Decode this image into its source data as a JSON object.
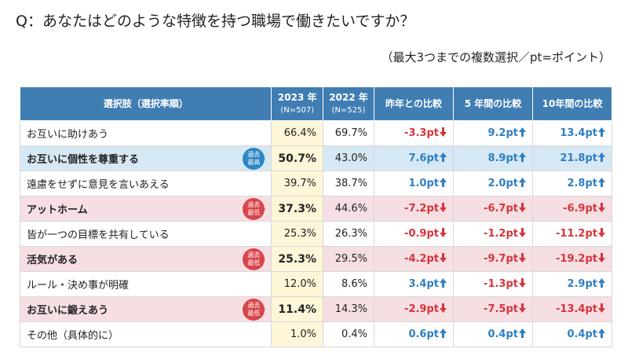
{
  "title": "Q：あなたはどのような特徴を持つ職場で働きたいですか？",
  "note": "（最大3つまでの複数選択／pt=ポイント）",
  "table": {
    "header": [
      [
        "選択肢（選択率順）"
      ],
      [
        "2023 年",
        "(N=507)"
      ],
      [
        "2022 年",
        "(N=525)"
      ],
      [
        "昨年との比較"
      ],
      [
        "5 年間の比較"
      ],
      [
        "10年間の比較"
      ]
    ],
    "header_color": "#3f7db3",
    "rows": [
      {
        "cells": [
          "お互いに助けあう",
          "66.4%",
          "69.7%",
          "-3.3pt",
          "9.2pt",
          "13.4pt"
        ]
      },
      {
        "cells": [
          "お互いに個性を尊重する",
          "50.7%",
          "43.0%",
          "7.6pt",
          "8.9pt",
          "21.8pt"
        ],
        "badge": "過去\n最高",
        "badge_color": "#2e86c4",
        "row_color": "#d6e8f3"
      },
      {
        "cells": [
          "遠慮をせずに意見を言いあえる",
          "39.7%",
          "38.7%",
          "1.0pt",
          "2.0pt",
          "2.8pt"
        ]
      },
      {
        "cells": [
          "アットホーム",
          "37.3%",
          "44.6%",
          "-7.2pt",
          "-6.7pt",
          "-6.9pt"
        ],
        "badge": "過去\n最低",
        "badge_color": "#d8454b",
        "row_color": "#f5dfe2"
      },
      {
        "cells": [
          "皆が一つの目標を共有している",
          "25.3%",
          "26.3%",
          "-0.9pt",
          "-1.2pt",
          "-11.2pt"
        ]
      },
      {
        "cells": [
          "活気がある",
          "25.3%",
          "29.5%",
          "-4.2pt",
          "-9.7pt",
          "-19.2pt"
        ],
        "badge": "過去\n最低",
        "badge_color": "#d8454b",
        "row_color": "#f5dfe2"
      },
      {
        "cells": [
          "ルール・決め事が明確",
          "12.0%",
          "8.6%",
          "3.4pt",
          "-1.3pt",
          "2.9pt"
        ]
      },
      {
        "cells": [
          "お互いに鍛えあう",
          "11.4%",
          "14.3%",
          "-2.9pt",
          "-7.5pt",
          "-13.4pt"
        ],
        "badge": "過去\n最低",
        "badge_color": "#d8454b",
        "row_color": "#f5dfe2"
      },
      {
        "cells": [
          "その他（具体的に）",
          "1.0%",
          "0.4%",
          "0.6pt",
          "0.4pt",
          "0.4pt"
        ]
      }
    ]
  }
}
